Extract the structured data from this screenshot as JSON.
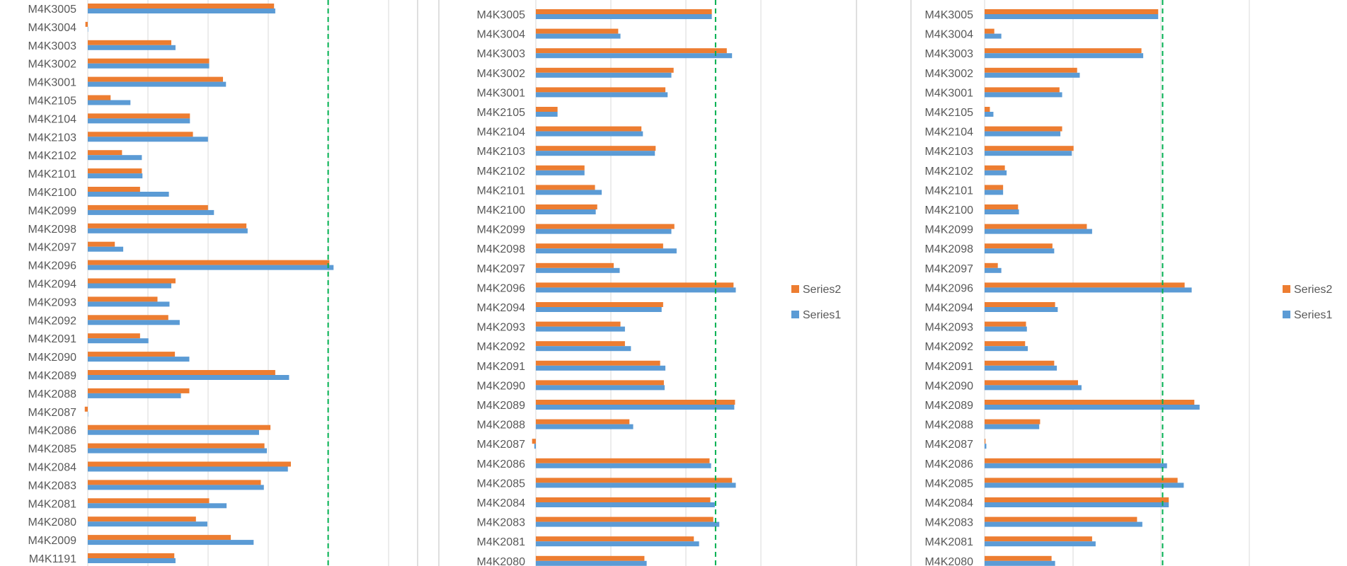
{
  "colors": {
    "series1": "#5B9BD5",
    "series2": "#ED7D31",
    "reference": "#00B050"
  },
  "chart_data": [
    {
      "type": "bar",
      "orientation": "horizontal",
      "categories": [
        "M4K3005",
        "M4K3004",
        "M4K3003",
        "M4K3002",
        "M4K3001",
        "M4K2105",
        "M4K2104",
        "M4K2103",
        "M4K2102",
        "M4K2101",
        "M4K2100",
        "M4K2099",
        "M4K2098",
        "M4K2097",
        "M4K2096",
        "M4K2094",
        "M4K2093",
        "M4K2092",
        "M4K2091",
        "M4K2090",
        "M4K2089",
        "M4K2088",
        "M4K2087",
        "M4K2086",
        "M4K2085",
        "M4K2084",
        "M4K2083",
        "M4K2081",
        "M4K2080",
        "M4K2009",
        "M4K1191"
      ],
      "series": [
        {
          "name": "Series1",
          "values": [
            312,
            0,
            146,
            202,
            230,
            71,
            170,
            200,
            90,
            91,
            135,
            210,
            266,
            59,
            409,
            139,
            136,
            153,
            101,
            169,
            335,
            155,
            0,
            285,
            298,
            333,
            293,
            231,
            199,
            276,
            146
          ]
        },
        {
          "name": "Series2",
          "values": [
            310,
            -4,
            139,
            202,
            225,
            38,
            170,
            175,
            57,
            90,
            87,
            200,
            264,
            45,
            402,
            146,
            116,
            134,
            87,
            145,
            312,
            169,
            -5,
            304,
            294,
            338,
            288,
            202,
            180,
            238,
            144
          ]
        }
      ],
      "reference_line": 400,
      "xlim": [
        0,
        540
      ],
      "grid": true,
      "legend": "none"
    },
    {
      "type": "bar",
      "orientation": "horizontal",
      "categories": [
        "M4K3005",
        "M4K3004",
        "M4K3003",
        "M4K3002",
        "M4K3001",
        "M4K2105",
        "M4K2104",
        "M4K2103",
        "M4K2102",
        "M4K2101",
        "M4K2100",
        "M4K2099",
        "M4K2098",
        "M4K2097",
        "M4K2096",
        "M4K2094",
        "M4K2093",
        "M4K2092",
        "M4K2091",
        "M4K2090",
        "M4K2089",
        "M4K2088",
        "M4K2087",
        "M4K2086",
        "M4K2085",
        "M4K2084",
        "M4K2083",
        "M4K2081",
        "M4K2080"
      ],
      "series": [
        {
          "name": "Series1",
          "values": [
            235,
            113,
            262,
            181,
            176,
            29,
            143,
            159,
            65,
            88,
            80,
            181,
            188,
            112,
            267,
            168,
            119,
            127,
            173,
            172,
            265,
            130,
            -2,
            234,
            267,
            239,
            245,
            218,
            148
          ]
        },
        {
          "name": "Series2",
          "values": [
            235,
            110,
            255,
            184,
            173,
            29,
            141,
            160,
            65,
            79,
            82,
            185,
            170,
            104,
            264,
            170,
            113,
            119,
            166,
            171,
            266,
            125,
            -5,
            232,
            262,
            233,
            237,
            211,
            145
          ]
        }
      ],
      "reference_line": 240,
      "xlim": [
        0,
        300
      ],
      "grid": true,
      "legend": "right",
      "legend_entries": [
        "Series2",
        "Series1"
      ]
    },
    {
      "type": "bar",
      "orientation": "horizontal",
      "categories": [
        "M4K3005",
        "M4K3004",
        "M4K3003",
        "M4K3002",
        "M4K3001",
        "M4K2105",
        "M4K2104",
        "M4K2103",
        "M4K2102",
        "M4K2101",
        "M4K2100",
        "M4K2099",
        "M4K2098",
        "M4K2097",
        "M4K2096",
        "M4K2094",
        "M4K2093",
        "M4K2092",
        "M4K2091",
        "M4K2090",
        "M4K2089",
        "M4K2088",
        "M4K2087",
        "M4K2086",
        "M4K2085",
        "M4K2084",
        "M4K2083",
        "M4K2081",
        "M4K2080"
      ],
      "series": [
        {
          "name": "Series1",
          "values": [
            197,
            19,
            180,
            108,
            88,
            10,
            86,
            99,
            25,
            21,
            39,
            122,
            79,
            19,
            235,
            83,
            48,
            49,
            82,
            110,
            244,
            62,
            2,
            207,
            226,
            209,
            179,
            126,
            80
          ]
        },
        {
          "name": "Series2",
          "values": [
            197,
            11,
            178,
            105,
            85,
            6,
            88,
            101,
            23,
            21,
            38,
            116,
            77,
            15,
            227,
            80,
            47,
            46,
            79,
            106,
            238,
            63,
            1,
            200,
            219,
            209,
            173,
            122,
            76
          ]
        }
      ],
      "reference_line": 202,
      "xlim": [
        0,
        400
      ],
      "grid": true,
      "legend": "right",
      "legend_entries": [
        "Series2",
        "Series1"
      ]
    }
  ]
}
